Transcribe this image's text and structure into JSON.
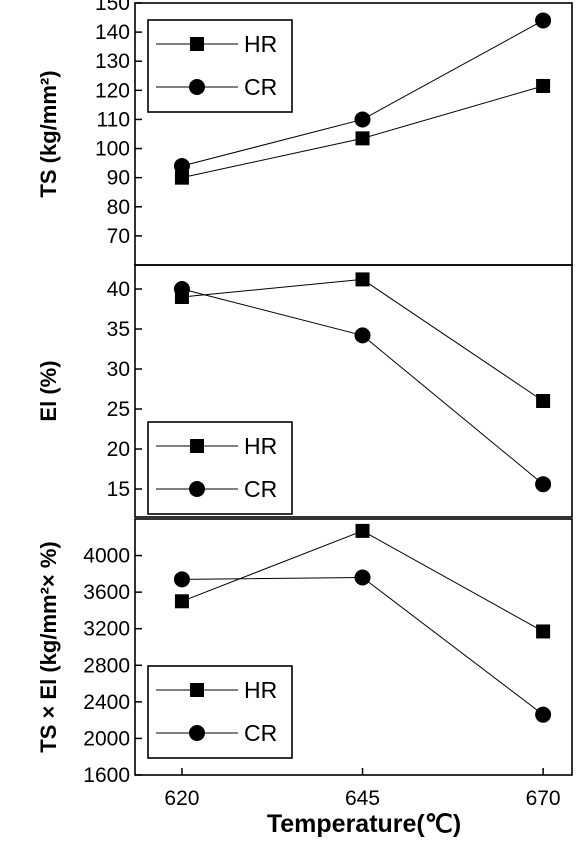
{
  "chart_data": [
    {
      "type": "line",
      "x": [
        620,
        645,
        670
      ],
      "ylabel": "TS (kg/mm²)",
      "ylim": [
        60,
        150
      ],
      "yticks": [
        70,
        80,
        90,
        100,
        110,
        120,
        130,
        140,
        150
      ],
      "series": [
        {
          "name": "HR",
          "marker": "square",
          "values": [
            90,
            103.5,
            121.5
          ]
        },
        {
          "name": "CR",
          "marker": "circle",
          "values": [
            94,
            110,
            144
          ]
        }
      ],
      "legend": "top-left"
    },
    {
      "type": "line",
      "x": [
        620,
        645,
        670
      ],
      "ylabel": "El (%)",
      "ylim": [
        11.5,
        43
      ],
      "yticks": [
        15,
        20,
        25,
        30,
        35,
        40
      ],
      "series": [
        {
          "name": "HR",
          "marker": "square",
          "values": [
            39,
            41.2,
            26
          ]
        },
        {
          "name": "CR",
          "marker": "circle",
          "values": [
            40,
            34.2,
            15.6
          ]
        }
      ],
      "legend": "bottom-left"
    },
    {
      "type": "line",
      "x": [
        620,
        645,
        670
      ],
      "xlabel": "Temperature(℃)",
      "xticks": [
        620,
        645,
        670
      ],
      "xlim": [
        613.5,
        674
      ],
      "ylabel": "TS × El (kg/mm²× %)",
      "ylim": [
        1600,
        4400
      ],
      "yticks": [
        1600,
        2000,
        2400,
        2800,
        3200,
        3600,
        4000
      ],
      "series": [
        {
          "name": "HR",
          "marker": "square",
          "values": [
            3500,
            4270,
            3170
          ]
        },
        {
          "name": "CR",
          "marker": "circle",
          "values": [
            3740,
            3760,
            2260
          ]
        }
      ],
      "legend": "bottom-left"
    }
  ]
}
